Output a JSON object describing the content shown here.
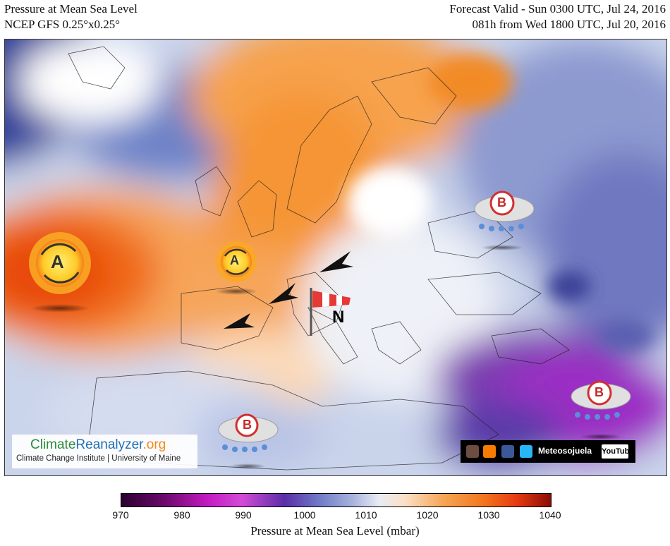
{
  "header": {
    "title": "Pressure at Mean Sea Level",
    "model": "NCEP GFS 0.25°x0.25°",
    "valid": "Forecast Valid - Sun 0300 UTC, Jul 24, 2016",
    "run": "081h from Wed 1800 UTC, Jul 20, 2016"
  },
  "symbols": {
    "high_letter": "A",
    "low_letter": "B",
    "wind_letter": "N"
  },
  "logo": {
    "part1": "Climate",
    "part2": "Reanalyzer",
    "part3": ".org",
    "subtitle": "Climate Change Institute | University of Maine"
  },
  "social": {
    "name": "Meteosojuela",
    "youtube": "YouTube"
  },
  "colorbar": {
    "ticks": [
      "970",
      "980",
      "990",
      "1000",
      "1010",
      "1020",
      "1030",
      "1040"
    ],
    "label": "Pressure at Mean Sea Level (mbar)",
    "colors": {
      "low": "#2a0030",
      "mid": "#e8ecf4",
      "high": "#8a0c05"
    }
  }
}
